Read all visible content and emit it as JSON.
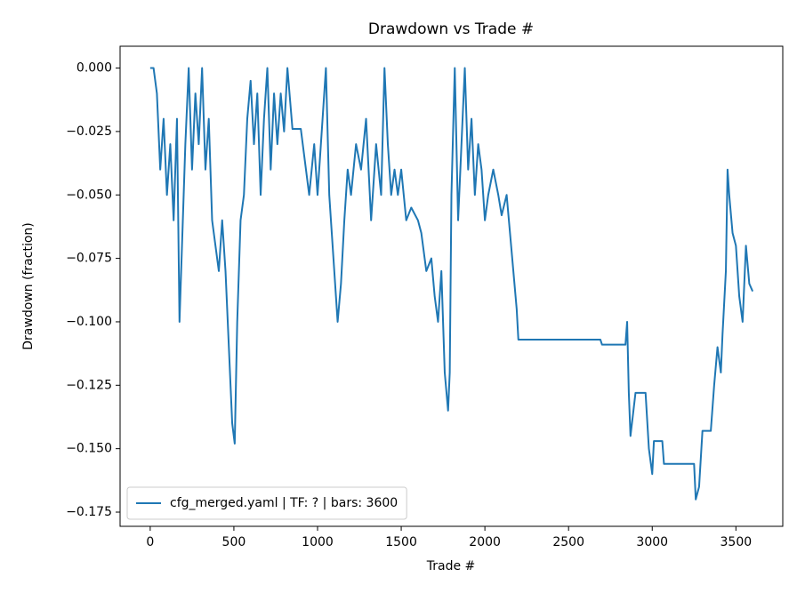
{
  "chart_data": {
    "type": "line",
    "title": "Drawdown vs Trade #",
    "xlabel": "Trade #",
    "ylabel": "Drawdown (fraction)",
    "xlim": [
      -180,
      3780
    ],
    "ylim": [
      -0.1806,
      0.0086
    ],
    "xticks": [
      0,
      500,
      1000,
      1500,
      2000,
      2500,
      3000,
      3500
    ],
    "yticks": [
      {
        "value": 0,
        "label": "0.000"
      },
      {
        "value": -0.025,
        "label": "−0.025"
      },
      {
        "value": -0.05,
        "label": "−0.050"
      },
      {
        "value": -0.075,
        "label": "−0.075"
      },
      {
        "value": -0.1,
        "label": "−0.100"
      },
      {
        "value": -0.125,
        "label": "−0.125"
      },
      {
        "value": -0.15,
        "label": "−0.150"
      },
      {
        "value": -0.175,
        "label": "−0.175"
      }
    ],
    "grid": false,
    "legend": "lower left",
    "x": [
      0,
      20,
      40,
      60,
      80,
      100,
      120,
      140,
      160,
      175,
      190,
      210,
      230,
      250,
      270,
      290,
      310,
      330,
      350,
      370,
      390,
      410,
      430,
      450,
      470,
      490,
      505,
      520,
      540,
      560,
      580,
      600,
      620,
      640,
      660,
      680,
      700,
      720,
      740,
      760,
      780,
      800,
      820,
      850,
      900,
      950,
      980,
      1000,
      1030,
      1050,
      1070,
      1100,
      1120,
      1140,
      1160,
      1180,
      1200,
      1230,
      1260,
      1290,
      1320,
      1350,
      1380,
      1400,
      1420,
      1440,
      1460,
      1480,
      1500,
      1530,
      1560,
      1600,
      1620,
      1650,
      1680,
      1700,
      1720,
      1740,
      1760,
      1780,
      1790,
      1800,
      1820,
      1840,
      1860,
      1880,
      1900,
      1920,
      1940,
      1960,
      1980,
      2000,
      2020,
      2050,
      2080,
      2100,
      2130,
      2150,
      2170,
      2190,
      2200,
      2690,
      2700,
      2840,
      2850,
      2860,
      2870,
      2900,
      2960,
      2980,
      3000,
      3010,
      3060,
      3070,
      3250,
      3260,
      3280,
      3300,
      3350,
      3370,
      3390,
      3410,
      3420,
      3440,
      3450,
      3460,
      3480,
      3500,
      3520,
      3540,
      3560,
      3580,
      3600
    ],
    "series": [
      {
        "name": "cfg_merged.yaml | TF: ? | bars: 3600",
        "color": "#1f77b4",
        "values": [
          0,
          0,
          -0.01,
          -0.04,
          -0.02,
          -0.05,
          -0.03,
          -0.06,
          -0.02,
          -0.1,
          -0.07,
          -0.03,
          0,
          -0.04,
          -0.01,
          -0.03,
          0,
          -0.04,
          -0.02,
          -0.06,
          -0.07,
          -0.08,
          -0.06,
          -0.08,
          -0.11,
          -0.14,
          -0.148,
          -0.1,
          -0.06,
          -0.05,
          -0.02,
          -0.005,
          -0.03,
          -0.01,
          -0.05,
          -0.02,
          0,
          -0.04,
          -0.01,
          -0.03,
          -0.01,
          -0.025,
          0,
          -0.024,
          -0.024,
          -0.05,
          -0.03,
          -0.05,
          -0.02,
          0,
          -0.05,
          -0.08,
          -0.1,
          -0.085,
          -0.06,
          -0.04,
          -0.05,
          -0.03,
          -0.04,
          -0.02,
          -0.06,
          -0.03,
          -0.05,
          0,
          -0.03,
          -0.05,
          -0.04,
          -0.05,
          -0.04,
          -0.06,
          -0.055,
          -0.06,
          -0.065,
          -0.08,
          -0.075,
          -0.09,
          -0.1,
          -0.08,
          -0.12,
          -0.135,
          -0.12,
          -0.05,
          0,
          -0.06,
          -0.03,
          0,
          -0.04,
          -0.02,
          -0.05,
          -0.03,
          -0.04,
          -0.06,
          -0.05,
          -0.04,
          -0.05,
          -0.058,
          -0.05,
          -0.065,
          -0.08,
          -0.095,
          -0.107,
          -0.107,
          -0.109,
          -0.109,
          -0.1,
          -0.128,
          -0.145,
          -0.128,
          -0.128,
          -0.15,
          -0.16,
          -0.147,
          -0.147,
          -0.156,
          -0.156,
          -0.17,
          -0.165,
          -0.143,
          -0.143,
          -0.125,
          -0.11,
          -0.12,
          -0.105,
          -0.08,
          -0.04,
          -0.05,
          -0.065,
          -0.07,
          -0.09,
          -0.1,
          -0.07,
          -0.085,
          -0.088
        ]
      }
    ]
  }
}
